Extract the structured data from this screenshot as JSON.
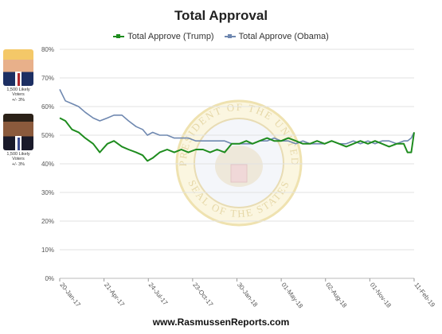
{
  "chart_data": {
    "type": "line",
    "title": "Total Approval",
    "xlabel": "",
    "ylabel": "",
    "ylim": [
      0,
      80
    ],
    "yticks": [
      "0%",
      "10%",
      "20%",
      "30%",
      "40%",
      "50%",
      "60%",
      "70%",
      "80%"
    ],
    "x_tick_labels": [
      "20-Jan-17",
      "21-Apr-17",
      "24-Jul-17",
      "23-Oct-17",
      "30-Jan-18",
      "01-May-18",
      "02-Aug-18",
      "01-Nov-18",
      "11-Feb-19"
    ],
    "x_range": [
      "2017-01-20",
      "2019-02-11"
    ],
    "grid": true,
    "legend_position": "top",
    "series": [
      {
        "name": "Total Approve (Trump)",
        "color": "#1e8c1e",
        "x": [
          "2017-01-20",
          "2017-02-01",
          "2017-02-15",
          "2017-03-01",
          "2017-03-15",
          "2017-04-01",
          "2017-04-15",
          "2017-05-01",
          "2017-05-15",
          "2017-06-01",
          "2017-06-15",
          "2017-07-01",
          "2017-07-15",
          "2017-07-25",
          "2017-08-05",
          "2017-08-20",
          "2017-09-05",
          "2017-09-20",
          "2017-10-05",
          "2017-10-20",
          "2017-11-05",
          "2017-11-20",
          "2017-12-05",
          "2017-12-20",
          "2018-01-05",
          "2018-01-20",
          "2018-02-05",
          "2018-02-20",
          "2018-03-05",
          "2018-03-20",
          "2018-04-05",
          "2018-04-20",
          "2018-05-05",
          "2018-05-20",
          "2018-06-05",
          "2018-06-20",
          "2018-07-05",
          "2018-07-20",
          "2018-08-05",
          "2018-08-20",
          "2018-09-05",
          "2018-09-20",
          "2018-10-05",
          "2018-10-20",
          "2018-11-05",
          "2018-11-20",
          "2018-12-05",
          "2018-12-20",
          "2019-01-05",
          "2019-01-20",
          "2019-01-28",
          "2019-02-05",
          "2019-02-11"
        ],
        "values": [
          56,
          55,
          52,
          51,
          49,
          47,
          44,
          47,
          48,
          46,
          45,
          44,
          43,
          41,
          42,
          44,
          45,
          44,
          45,
          44,
          45,
          45,
          44,
          45,
          44,
          47,
          47,
          48,
          47,
          48,
          49,
          48,
          48,
          49,
          48,
          47,
          47,
          48,
          47,
          48,
          47,
          46,
          47,
          48,
          47,
          48,
          47,
          46,
          47,
          47,
          44,
          44,
          51
        ]
      },
      {
        "name": "Total Approve (Obama)",
        "color": "#6f88b0",
        "x": [
          "2017-01-20",
          "2017-02-01",
          "2017-02-15",
          "2017-03-01",
          "2017-03-15",
          "2017-04-01",
          "2017-04-15",
          "2017-05-01",
          "2017-05-15",
          "2017-06-01",
          "2017-06-15",
          "2017-07-01",
          "2017-07-15",
          "2017-07-25",
          "2017-08-05",
          "2017-08-20",
          "2017-09-05",
          "2017-09-20",
          "2017-10-05",
          "2017-10-20",
          "2017-11-05",
          "2017-11-20",
          "2017-12-05",
          "2017-12-20",
          "2018-01-05",
          "2018-01-20",
          "2018-02-05",
          "2018-02-20",
          "2018-03-05",
          "2018-03-20",
          "2018-04-05",
          "2018-04-20",
          "2018-05-05",
          "2018-05-20",
          "2018-06-05",
          "2018-06-20",
          "2018-07-05",
          "2018-07-20",
          "2018-08-05",
          "2018-08-20",
          "2018-09-05",
          "2018-09-20",
          "2018-10-05",
          "2018-10-20",
          "2018-11-05",
          "2018-11-20",
          "2018-12-05",
          "2018-12-20",
          "2019-01-05",
          "2019-01-20",
          "2019-01-28",
          "2019-02-05",
          "2019-02-11"
        ],
        "values": [
          66,
          62,
          61,
          60,
          58,
          56,
          55,
          56,
          57,
          57,
          55,
          53,
          52,
          50,
          51,
          50,
          50,
          49,
          49,
          49,
          48,
          48,
          48,
          48,
          48,
          47,
          47,
          47,
          47,
          48,
          48,
          49,
          48,
          48,
          47,
          48,
          47,
          47,
          47,
          48,
          47,
          47,
          48,
          47,
          48,
          47,
          48,
          48,
          47,
          48,
          48,
          49,
          51
        ]
      }
    ]
  },
  "legend": {
    "trump": "Total Approve (Trump)",
    "obama": "Total Approve (Obama)"
  },
  "photos": {
    "trump": {
      "line1": "1,500 Likely",
      "line2": "Voters",
      "line3": "+/- 3%"
    },
    "obama": {
      "line1": "1,500 Likely",
      "line2": "Voters",
      "line3": "+/- 3%"
    }
  },
  "footer": "www.RasmussenReports.com",
  "watermark": {
    "top_text": "PRESIDENT OF THE UNITED",
    "bottom_text": "SEAL OF THE STATES"
  }
}
